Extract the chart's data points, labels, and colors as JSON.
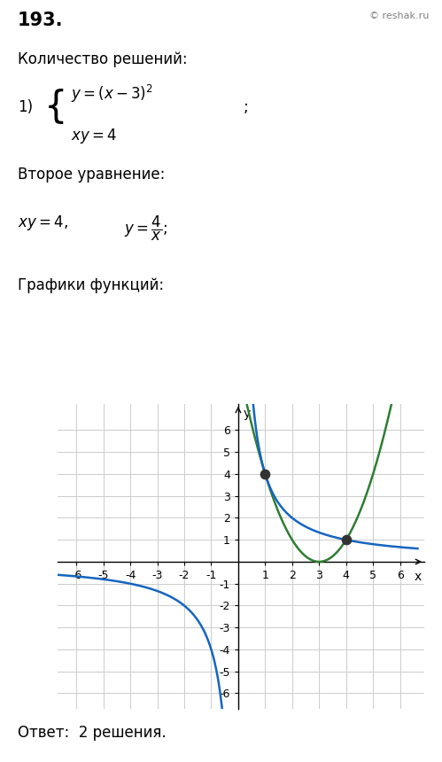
{
  "title_number": "193.",
  "copyright": "© reshak.ru",
  "line1": "Количество решений:",
  "line2": "Второе уравнение:",
  "line3": "Графики функций:",
  "answer_text": "Ответ:  2 решения.",
  "parabola_color": "#2e7d32",
  "hyperbola_color": "#1565c0",
  "intersection_points": [
    [
      1,
      4
    ],
    [
      4,
      1
    ]
  ],
  "dot_color": "#333333",
  "dot_size": 55,
  "x_range": [
    -6.7,
    6.9
  ],
  "y_range": [
    -6.7,
    7.2
  ],
  "x_ticks": [
    -6,
    -5,
    -4,
    -3,
    -2,
    -1,
    1,
    2,
    3,
    4,
    5,
    6
  ],
  "y_ticks": [
    -6,
    -5,
    -4,
    -3,
    -2,
    -1,
    1,
    2,
    3,
    4,
    5,
    6
  ],
  "grid_color": "#cccccc",
  "background_color": "#ffffff",
  "axis_color": "#000000",
  "font_size_title": 15,
  "font_size_text": 12,
  "font_size_tick": 9
}
